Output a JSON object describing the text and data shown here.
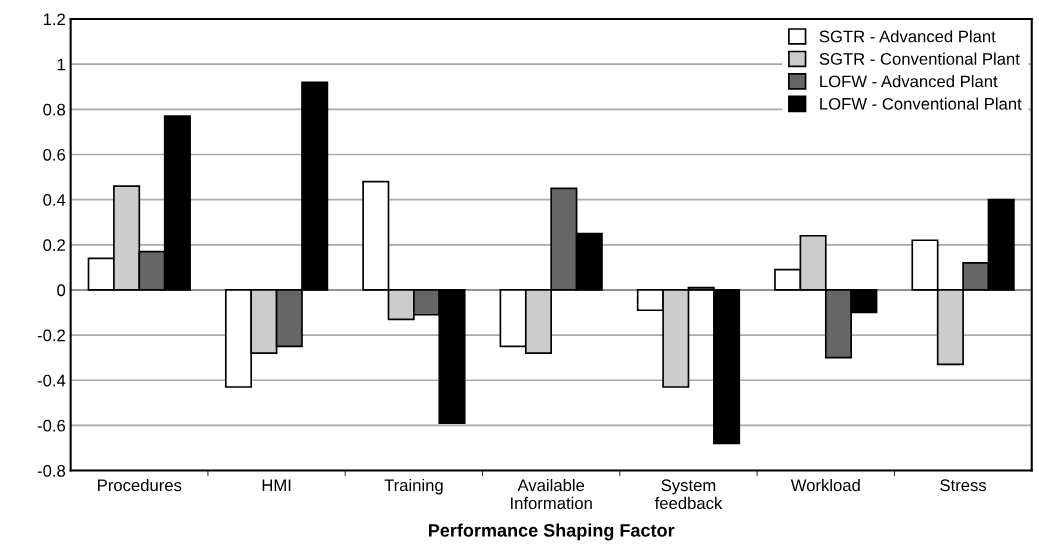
{
  "chart_data": {
    "type": "bar",
    "xlabel": "Performance Shaping Factor",
    "categories": [
      "Procedures",
      "HMI",
      "Training",
      "Available\nInformation",
      "System\nfeedback",
      "Workload",
      "Stress"
    ],
    "series": [
      {
        "name": "SGTR - Advanced Plant",
        "color": "#ffffff",
        "values": [
          0.14,
          -0.43,
          0.48,
          -0.25,
          -0.09,
          0.09,
          0.22
        ]
      },
      {
        "name": "SGTR - Conventional Plant",
        "color": "#cccccc",
        "values": [
          0.46,
          -0.28,
          -0.13,
          -0.28,
          -0.43,
          0.24,
          -0.33
        ]
      },
      {
        "name": "LOFW - Advanced Plant",
        "color": "#666666",
        "values": [
          0.17,
          -0.25,
          -0.11,
          0.45,
          0.01,
          -0.3,
          0.12
        ]
      },
      {
        "name": "LOFW - Conventional Plant",
        "color": "#000000",
        "values": [
          0.77,
          0.92,
          -0.59,
          0.25,
          -0.68,
          -0.1,
          0.4
        ]
      }
    ],
    "ylim": [
      -0.8,
      1.2
    ],
    "yticks": [
      -0.8,
      -0.6,
      -0.4,
      -0.2,
      0,
      0.2,
      0.4,
      0.6,
      0.8,
      1,
      1.2
    ],
    "grid": "y",
    "legend": "top right"
  }
}
